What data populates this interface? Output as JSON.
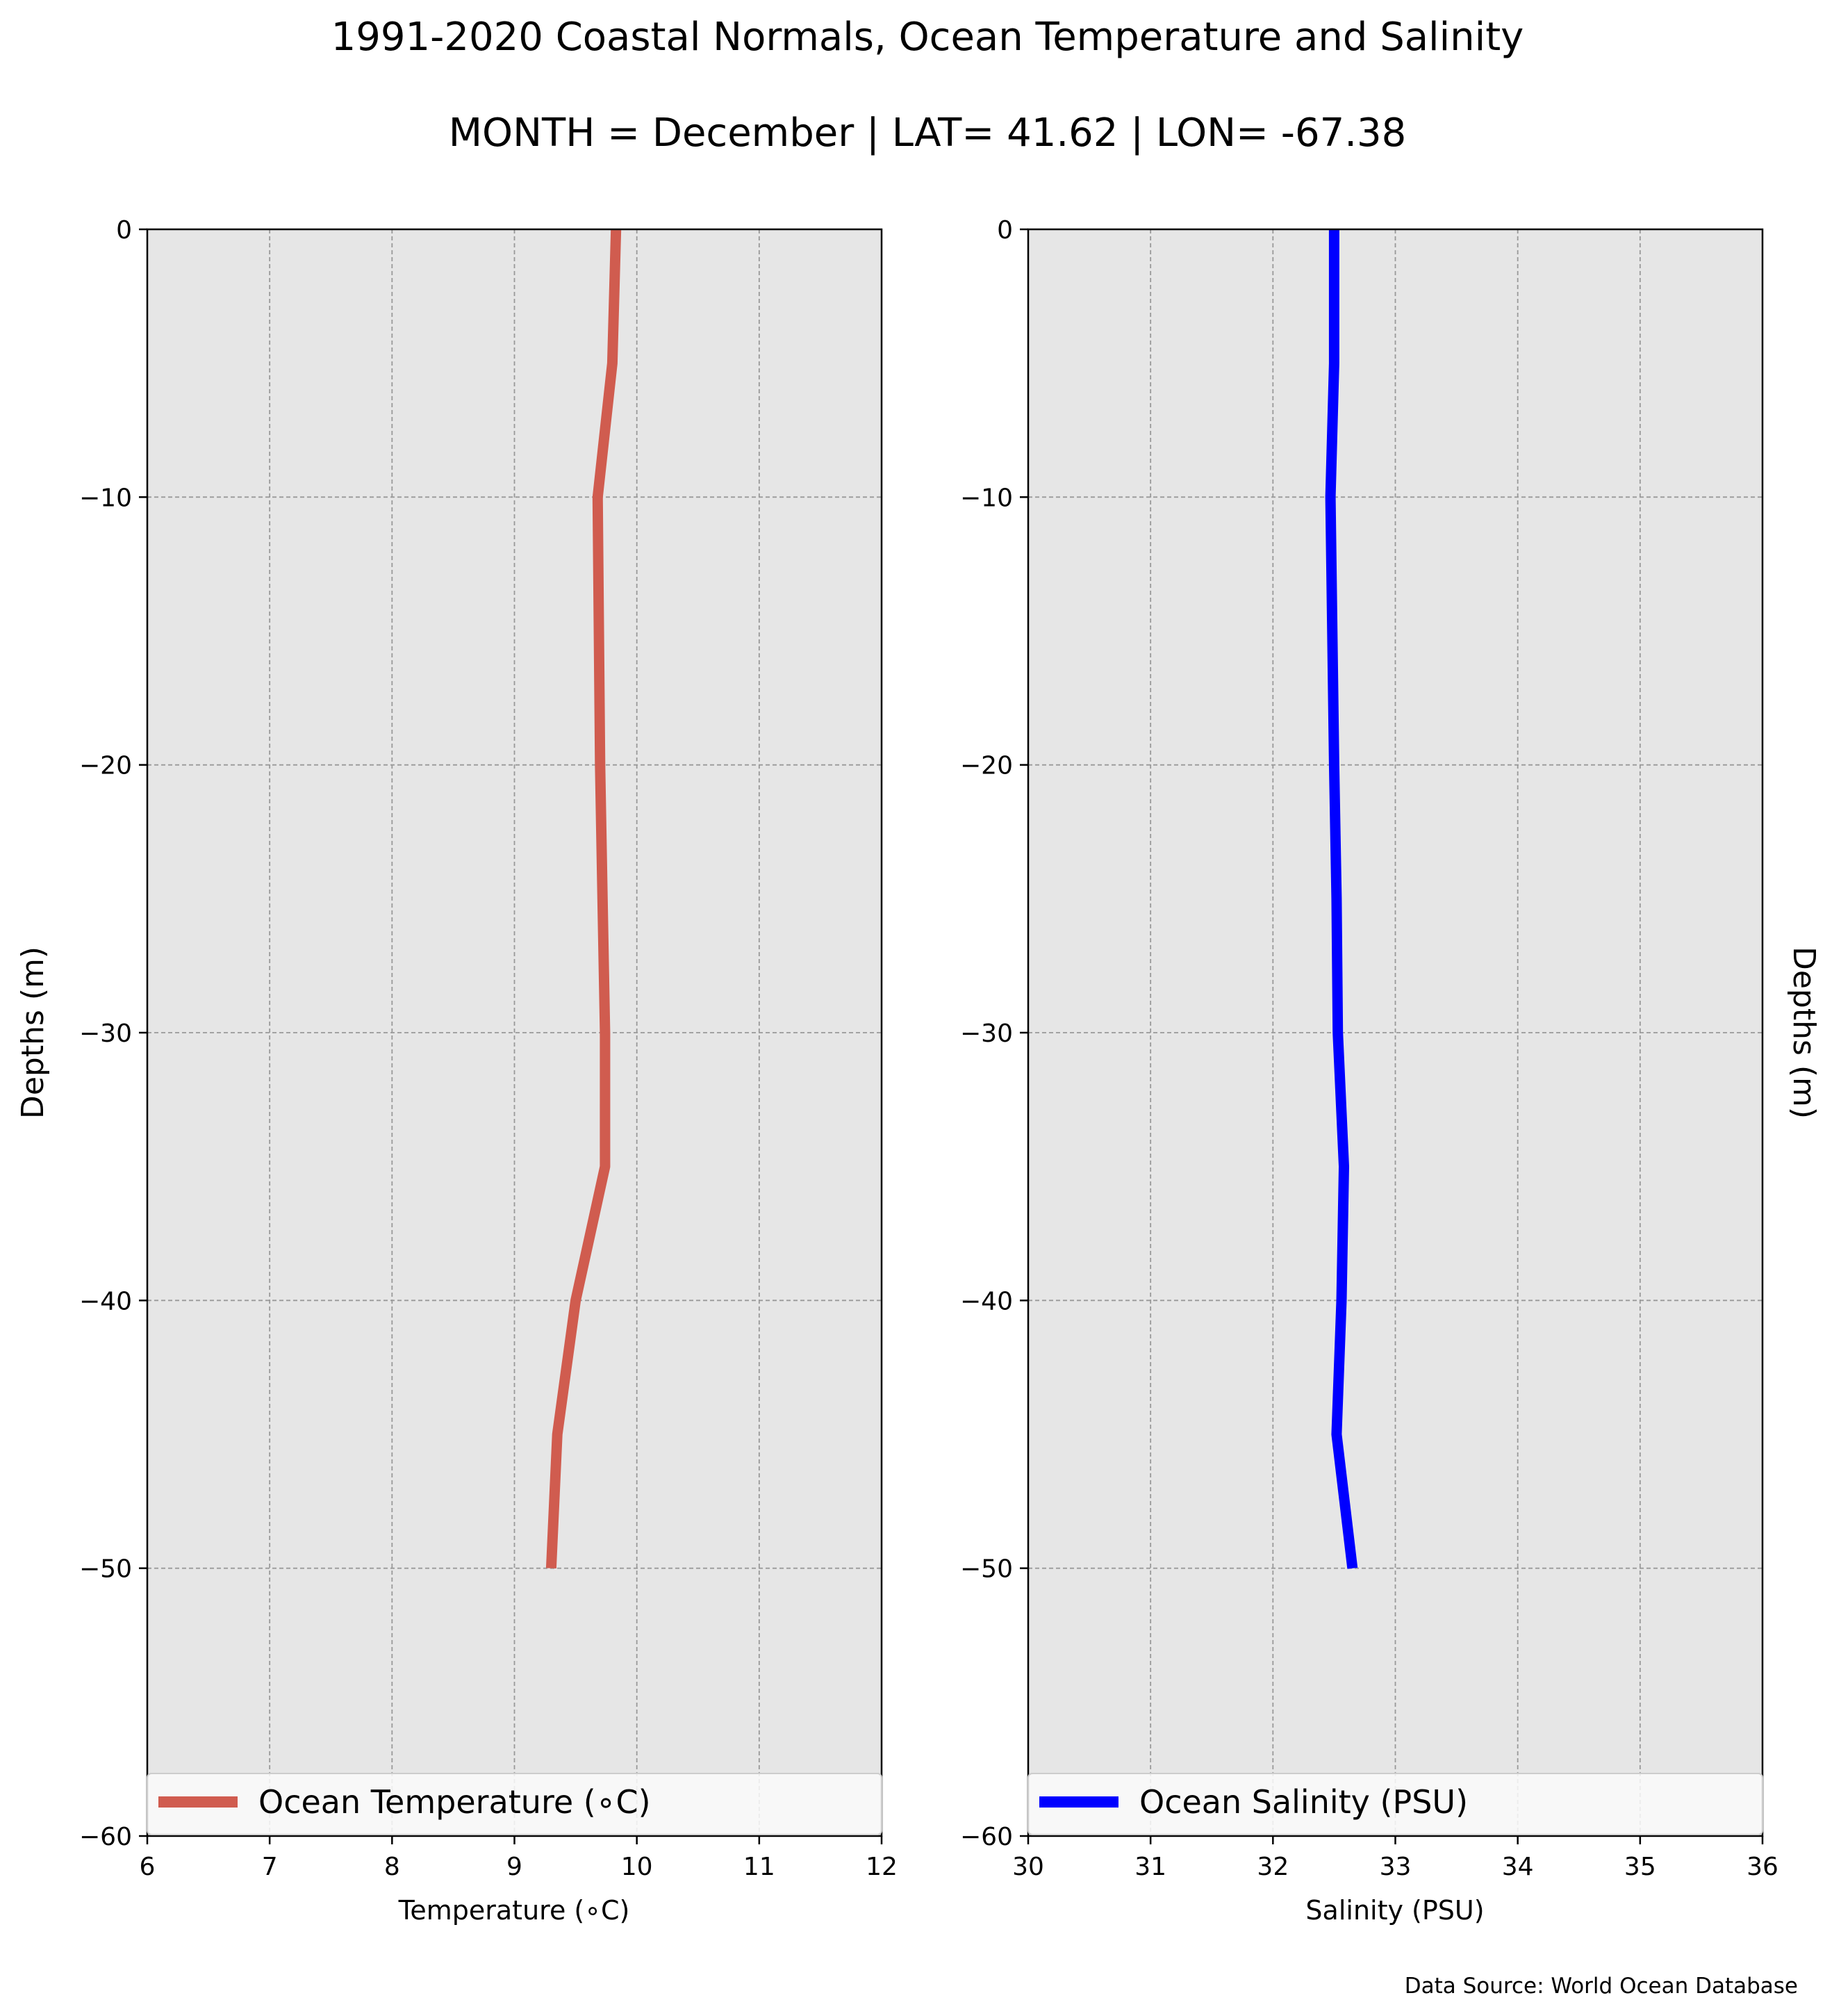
{
  "title": "1991-2020 Coastal Normals, Ocean Temperature and Salinity",
  "subtitle": "MONTH = December | LAT= 41.62 | LON= -67.38",
  "source": "Data Source: World Ocean Database",
  "colors": {
    "background": "#ffffff",
    "axes_face": "#e6e6e6",
    "grid": "#999999",
    "temperature": "#d05c4f",
    "salinity": "#0000ff"
  },
  "chart_data": [
    {
      "type": "line",
      "xlabel": "Temperature ($^\\circ$C)",
      "xlabel_display": "Temperature (∘C)",
      "ylabel": "Depths (m)",
      "xlim": [
        6,
        12
      ],
      "ylim": [
        -60,
        0
      ],
      "xticks": [
        "6",
        "7",
        "8",
        "9",
        "10",
        "11",
        "12"
      ],
      "yticks": [
        "0",
        "−10",
        "−20",
        "−30",
        "−40",
        "−50",
        "−60"
      ],
      "grid": true,
      "legend_placement": "lower-center",
      "series": [
        {
          "name": "Ocean Temperature (∘C)",
          "color": "#d05c4f",
          "x": [
            9.83,
            9.8,
            9.68,
            9.7,
            9.72,
            9.74,
            9.74,
            9.5,
            9.35,
            9.3
          ],
          "y": [
            0,
            -5,
            -10,
            -20,
            -25,
            -30,
            -35,
            -40,
            -45,
            -50
          ]
        }
      ]
    },
    {
      "type": "line",
      "xlabel": "Salinity (PSU)",
      "ylabel": "Depths (m)",
      "xlim": [
        30,
        36
      ],
      "ylim": [
        -60,
        0
      ],
      "xticks": [
        "30",
        "31",
        "32",
        "33",
        "34",
        "35",
        "36"
      ],
      "yticks": [
        "0",
        "−10",
        "−20",
        "−30",
        "−40",
        "−50",
        "−60"
      ],
      "grid": true,
      "legend_placement": "lower-center",
      "series": [
        {
          "name": "Ocean Salinity (PSU)",
          "color": "#0000ff",
          "x": [
            32.5,
            32.5,
            32.47,
            32.5,
            32.52,
            32.53,
            32.58,
            32.56,
            32.52,
            32.65
          ],
          "y": [
            0,
            -5,
            -10,
            -20,
            -25,
            -30,
            -35,
            -40,
            -45,
            -50
          ]
        }
      ]
    }
  ]
}
